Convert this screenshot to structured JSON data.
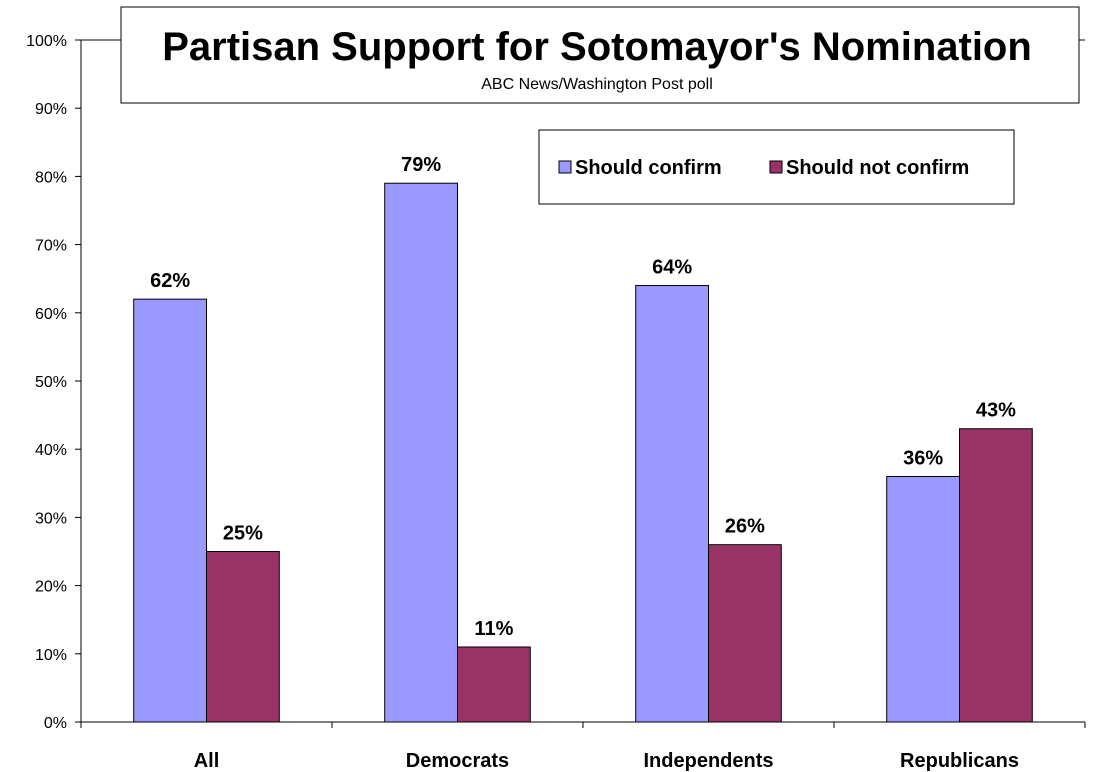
{
  "chart_data": {
    "type": "bar",
    "title": "Partisan Support for Sotomayor's Nomination",
    "subtitle": "ABC News/Washington Post poll",
    "categories": [
      "All",
      "Democrats",
      "Independents",
      "Republicans"
    ],
    "series": [
      {
        "name": "Should confirm",
        "values": [
          62,
          79,
          64,
          36
        ],
        "color": "#9999ff",
        "labels": [
          "62%",
          "79%",
          "64%",
          "36%"
        ]
      },
      {
        "name": "Should not confirm",
        "values": [
          25,
          11,
          26,
          43
        ],
        "color": "#993366",
        "labels": [
          "25%",
          "11%",
          "26%",
          "43%"
        ]
      }
    ],
    "ylim": [
      0,
      100
    ],
    "yticks": [
      0,
      10,
      20,
      30,
      40,
      50,
      60,
      70,
      80,
      90,
      100
    ],
    "ytick_labels": [
      "0%",
      "10%",
      "20%",
      "30%",
      "40%",
      "50%",
      "60%",
      "70%",
      "80%",
      "90%",
      "100%"
    ],
    "xlabel": "",
    "ylabel": "",
    "grid": false,
    "legend_position": "top-right"
  }
}
